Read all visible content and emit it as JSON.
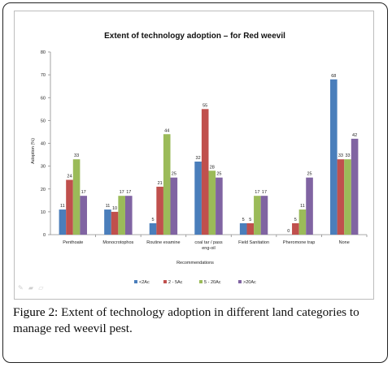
{
  "figure": {
    "caption_label": "Figure 2:",
    "caption_text": " Extent of technology adoption in different land categories to manage red weevil pest."
  },
  "colors": {
    "s1": "#4a7ebb",
    "s2": "#c0504d",
    "s3": "#9bbb59",
    "s4": "#8064a2"
  },
  "chart_data": {
    "type": "bar",
    "title": "Extent of technology adoption – for Red weevil",
    "xlabel": "Recommendations",
    "ylabel": "Adoption (%)",
    "ylim": [
      0,
      80
    ],
    "yticks": [
      0,
      10,
      20,
      30,
      40,
      50,
      60,
      70,
      80
    ],
    "grid": false,
    "legend": "bottom",
    "categories": [
      "Penthoate",
      "Monocrotophos",
      "Routine examine",
      "coal tar / pass eng-oil",
      "Field Sanitation",
      "Pheromone trap",
      "None"
    ],
    "series": [
      {
        "name": "<2Ac",
        "values": [
          11,
          11,
          5,
          32,
          5,
          0,
          68
        ]
      },
      {
        "name": "2 - 5Ac",
        "values": [
          24,
          10,
          21,
          55,
          5,
          5,
          33
        ]
      },
      {
        "name": "5 - 20Ac",
        "values": [
          33,
          17,
          44,
          28,
          17,
          11,
          33
        ]
      },
      {
        "name": ">20Ac",
        "values": [
          17,
          17,
          25,
          25,
          17,
          25,
          42
        ]
      }
    ]
  }
}
